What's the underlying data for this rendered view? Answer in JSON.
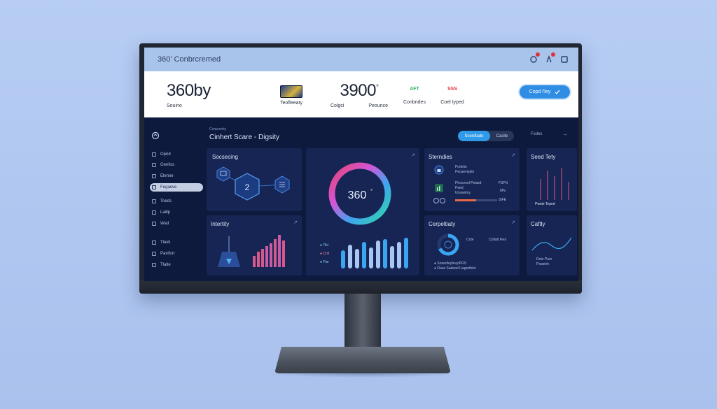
{
  "window": {
    "title": "360' Conbrcremed"
  },
  "stats": {
    "item1": {
      "value": "360by",
      "label": "Souino"
    },
    "item2": {
      "label": "Teofleeaty"
    },
    "item3": {
      "value": "3900",
      "degree": "°",
      "label_left": "Colgci",
      "label_right": "Peounce"
    },
    "item4": {
      "badge": "AFT",
      "label": "Conbrides",
      "badge_color": "#2fae5c"
    },
    "item5": {
      "badge": "SSS",
      "label": "Coel typed",
      "badge_color": "#e0303a"
    },
    "button_label": "Copd l'ley"
  },
  "sidebar": {
    "items": [
      {
        "label": "Oprid"
      },
      {
        "label": "Genliss"
      },
      {
        "label": "Elenne"
      },
      {
        "label": "Fegaeve",
        "active": true
      },
      {
        "label": "Toeds"
      },
      {
        "label": "Lailip"
      },
      {
        "label": "Wad"
      },
      {
        "label": "Tlavk"
      },
      {
        "label": "Pavifort"
      },
      {
        "label": "Tlaite"
      }
    ]
  },
  "header": {
    "breadcrumb": "Conpronity",
    "title": "Cinhert Scare - Digsity",
    "toggle_on": "Scerdlade",
    "toggle_off": "Caslle",
    "top_right_link": "Fsdes",
    "top_right_arrow": "→"
  },
  "cards": {
    "socsecing": {
      "title": "Socsecing",
      "center_value": "2"
    },
    "score": {
      "value": "360",
      "degree": "°"
    },
    "sterndies": {
      "title": "Sterndies",
      "row1_a": "Prsfelio",
      "row1_b": "Pecaevipplo",
      "row2_a": "Phoceool Peiasit",
      "row2_b": "Paed",
      "row2_c": "Ucesetiny",
      "row2_right1": "FSFN",
      "row2_right2": "MN",
      "row2_right3": "SIFE"
    },
    "seed_tety": {
      "title": "Seed Tety",
      "footer": "Pwste Tepert"
    },
    "intertity": {
      "title": "Intertity"
    },
    "bars_legend": [
      "Tikl",
      "Cnli",
      "Fisr"
    ],
    "cerpeltiaty": {
      "title": "Cerpeltiaty",
      "stat1": "Cote",
      "stat2": "Cotlatt fees",
      "line1": "Soseofeyfevy/PRS",
      "line2": "Daas Sadead Liagrethiet"
    },
    "caftly": {
      "title": "Caftly",
      "label1": "Dote Pure",
      "label2": "Pxaeieh"
    }
  },
  "colors": {
    "screen_bg": "#0d1a3d",
    "card_bg": "#162553",
    "accent": "#2f9ae8"
  }
}
